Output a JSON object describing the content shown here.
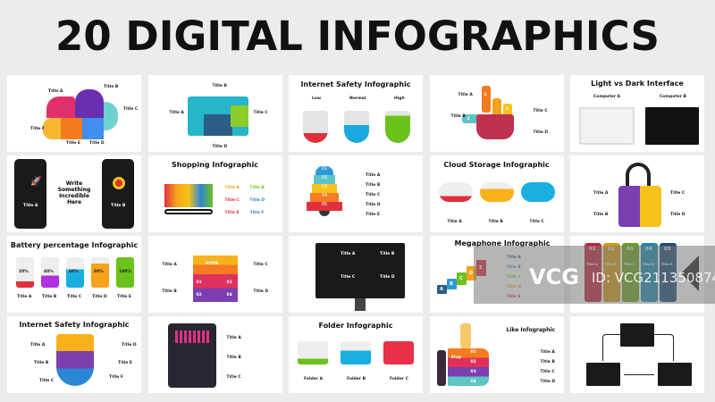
{
  "title": "20 DIGITAL INFOGRAPHICS",
  "watermark": {
    "logo": "VCG",
    "id": "ID: VCG211350874362"
  },
  "tiles": {
    "cloud": {
      "labels": [
        "Title A",
        "Title B",
        "Title C",
        "Title D",
        "Title E",
        "Title F"
      ]
    },
    "envelope": {
      "labels": [
        "Title A",
        "Title B",
        "Title C",
        "Title D"
      ]
    },
    "safety1": {
      "heading": "Internet Safety Infographic",
      "levels": [
        "Low",
        "Normal",
        "High"
      ]
    },
    "hand": {
      "labels": [
        "Title A",
        "Title B",
        "Title C",
        "Title D"
      ],
      "numbers": [
        "1",
        "2",
        "3"
      ]
    },
    "interface": {
      "heading": "Light vs Dark Interface",
      "labels": [
        "Computer A",
        "Computer B"
      ]
    },
    "phones": {
      "text": "Write Something Incredible Here",
      "labels": [
        "Title A",
        "Title B"
      ]
    },
    "shopping": {
      "heading": "Shopping Infographic",
      "labels": [
        "Title A",
        "Title B",
        "Title C",
        "Title D",
        "Title E",
        "Title F"
      ]
    },
    "bell": {
      "steps": [
        "01",
        "02",
        "03",
        "04",
        "05"
      ],
      "labels": [
        "Title A",
        "Title B",
        "Title C",
        "Title D",
        "Title E"
      ]
    },
    "cloudstorage": {
      "heading": "Cloud Storage Infographic",
      "labels": [
        "Title A",
        "Title B",
        "Title C"
      ]
    },
    "lock": {
      "labels": [
        "Title A",
        "Title C",
        "Title B",
        "Title D"
      ]
    },
    "battery": {
      "heading": "Battery percentage Infographic",
      "values": [
        "20%",
        "40%",
        "60%",
        "80%",
        "100%"
      ],
      "levels": [
        20,
        40,
        60,
        80,
        100
      ],
      "labels": [
        "Title A",
        "Title B",
        "Title C",
        "Title D",
        "Title E"
      ]
    },
    "home": {
      "word": "HOME",
      "steps": [
        "01",
        "03",
        "02",
        "04"
      ],
      "labels": [
        "Title A",
        "Title B",
        "Title C",
        "Title D"
      ]
    },
    "monitor": {
      "labels": [
        "Title A",
        "Title B",
        "Title C",
        "Title D"
      ]
    },
    "megaphone": {
      "heading": "Megaphone Infographic",
      "letters": [
        "A",
        "B",
        "C",
        "D",
        "E"
      ],
      "labels": [
        "Title A",
        "Title B",
        "Title C",
        "Title D",
        "Title E"
      ]
    },
    "columns": {
      "steps": [
        "01",
        "02",
        "03",
        "04",
        "05"
      ],
      "labels": [
        "Title A",
        "Title B",
        "Title C",
        "Title D",
        "Title E"
      ]
    },
    "safety2": {
      "heading": "Internet Safety Infographic",
      "labels": [
        "Title A",
        "Title B",
        "Title C",
        "Title D",
        "Title E",
        "Title F"
      ]
    },
    "tablet": {
      "labels": [
        "Title A",
        "Title B",
        "Title C"
      ]
    },
    "folder": {
      "heading": "Folder Infographic",
      "labels": [
        "Folder A",
        "Folder B",
        "Folder C"
      ]
    },
    "like": {
      "heading": "Like Infographic",
      "steps": [
        "01",
        "02",
        "03",
        "04"
      ],
      "step_word": "Step",
      "labels": [
        "Title A",
        "Title B",
        "Title C",
        "Title D"
      ]
    },
    "laptops": {}
  }
}
